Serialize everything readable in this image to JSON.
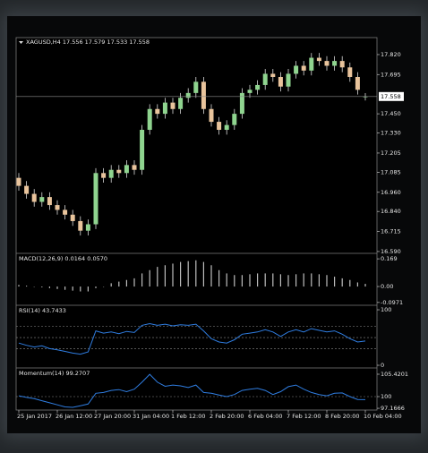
{
  "chart_data": [
    {
      "type": "candlestick",
      "title": "XAGUSD,H4  17.556 17.579 17.533 17.558",
      "categories": [
        "25 Jan 2017",
        null,
        null,
        null,
        null,
        "26 Jan 12:00",
        null,
        null,
        null,
        null,
        "27 Jan 20:00",
        null,
        null,
        null,
        null,
        "31 Jan 04:00",
        null,
        null,
        null,
        null,
        "1 Feb 12:00",
        null,
        null,
        null,
        null,
        "2 Feb 20:00",
        null,
        null,
        null,
        null,
        "6 Feb 04:00",
        null,
        null,
        null,
        null,
        "7 Feb 12:00",
        null,
        null,
        null,
        null,
        "8 Feb 20:00",
        null,
        null,
        null,
        null,
        "10 Feb 04:00"
      ],
      "open": [
        17.05,
        17.0,
        16.95,
        16.9,
        16.93,
        16.88,
        16.85,
        16.82,
        16.78,
        16.72,
        16.76,
        17.08,
        17.05,
        17.1,
        17.08,
        17.13,
        17.1,
        17.35,
        17.48,
        17.45,
        17.52,
        17.48,
        17.55,
        17.58,
        17.65,
        17.48,
        17.4,
        17.35,
        17.38,
        17.45,
        17.58,
        17.6,
        17.63,
        17.7,
        17.68,
        17.62,
        17.7,
        17.75,
        17.72,
        17.8,
        17.78,
        17.75,
        17.78,
        17.74,
        17.68,
        17.556
      ],
      "high": [
        17.08,
        17.03,
        16.98,
        16.96,
        16.96,
        16.91,
        16.88,
        16.85,
        16.81,
        16.79,
        17.11,
        17.11,
        17.13,
        17.13,
        17.16,
        17.16,
        17.38,
        17.51,
        17.51,
        17.55,
        17.55,
        17.58,
        17.61,
        17.68,
        17.68,
        17.51,
        17.43,
        17.41,
        17.48,
        17.61,
        17.63,
        17.66,
        17.73,
        17.73,
        17.71,
        17.73,
        17.78,
        17.78,
        17.83,
        17.83,
        17.81,
        17.81,
        17.81,
        17.77,
        17.71,
        17.579
      ],
      "low": [
        16.97,
        16.92,
        16.87,
        16.87,
        16.85,
        16.82,
        16.79,
        16.75,
        16.69,
        16.69,
        16.73,
        17.02,
        17.02,
        17.05,
        17.05,
        17.07,
        17.07,
        17.32,
        17.42,
        17.42,
        17.45,
        17.45,
        17.52,
        17.55,
        17.45,
        17.37,
        17.32,
        17.32,
        17.35,
        17.42,
        17.55,
        17.57,
        17.6,
        17.65,
        17.59,
        17.59,
        17.67,
        17.69,
        17.69,
        17.75,
        17.72,
        17.72,
        17.71,
        17.65,
        17.57,
        17.533
      ],
      "close": [
        17.0,
        16.95,
        16.9,
        16.93,
        16.88,
        16.85,
        16.82,
        16.78,
        16.72,
        16.76,
        17.08,
        17.05,
        17.1,
        17.08,
        17.13,
        17.1,
        17.35,
        17.48,
        17.45,
        17.52,
        17.48,
        17.55,
        17.58,
        17.65,
        17.48,
        17.4,
        17.35,
        17.38,
        17.45,
        17.58,
        17.6,
        17.63,
        17.7,
        17.68,
        17.62,
        17.7,
        17.75,
        17.72,
        17.8,
        17.78,
        17.75,
        17.78,
        17.74,
        17.68,
        17.6,
        17.558
      ],
      "up_color": "#8fd48f",
      "down_color": "#e9c49c",
      "wick_color": "#d8d8d8",
      "current_price": 17.558,
      "ylim": [
        16.584,
        17.926
      ],
      "yticks": [
        {
          "value": 16.59,
          "label": "16.590"
        },
        16.715,
        {
          "value": 16.84,
          "label": "16.840"
        },
        {
          "value": 16.96,
          "label": "16.960"
        },
        17.085,
        17.205,
        {
          "value": 17.33,
          "label": "17.330"
        },
        {
          "value": 17.45,
          "label": "17.450"
        },
        17.695,
        {
          "value": 17.82,
          "label": "17.820"
        }
      ]
    },
    {
      "type": "bar",
      "title": "MACD(12,26,9) 0.0164 0.0570",
      "color": "#bdbdbd",
      "values": [
        0.01,
        0.005,
        0.0,
        -0.005,
        -0.01,
        -0.015,
        -0.02,
        -0.025,
        -0.03,
        -0.03,
        -0.01,
        0.0,
        0.02,
        0.03,
        0.04,
        0.05,
        0.08,
        0.1,
        0.12,
        0.13,
        0.14,
        0.15,
        0.155,
        0.16,
        0.15,
        0.13,
        0.1,
        0.08,
        0.07,
        0.07,
        0.075,
        0.08,
        0.08,
        0.08,
        0.075,
        0.07,
        0.075,
        0.08,
        0.08,
        0.075,
        0.07,
        0.06,
        0.05,
        0.04,
        0.025,
        0.0164
      ],
      "ylim": [
        -0.109,
        0.197
      ],
      "yticks": [
        -0.0971,
        {
          "value": 0,
          "label": "0.00"
        },
        0.169
      ]
    },
    {
      "type": "line",
      "title": "RSI(14) 43.7433",
      "color": "#2f7de1",
      "values": [
        40,
        36,
        33,
        35,
        30,
        28,
        25,
        22,
        20,
        24,
        62,
        58,
        60,
        57,
        61,
        59,
        72,
        75,
        72,
        74,
        71,
        73,
        72,
        74,
        62,
        48,
        42,
        40,
        46,
        56,
        58,
        60,
        64,
        60,
        52,
        60,
        64,
        60,
        66,
        63,
        60,
        62,
        56,
        48,
        42,
        43.7433
      ],
      "levels": [
        30,
        50,
        70
      ],
      "ylim": [
        -3.2,
        106.5
      ],
      "yticks": [
        0,
        100
      ]
    },
    {
      "type": "line",
      "title": "Momentum(14) 99.2707",
      "color": "#2f7de1",
      "values": [
        100.2,
        99.8,
        99.5,
        99.0,
        98.5,
        98.0,
        97.5,
        97.4,
        97.8,
        98.2,
        100.8,
        101.0,
        101.5,
        101.7,
        101.2,
        101.8,
        103.5,
        105.4,
        103.5,
        102.5,
        102.8,
        102.6,
        102.2,
        102.8,
        101.0,
        100.8,
        100.4,
        100.0,
        100.5,
        101.5,
        101.8,
        102.0,
        101.5,
        100.5,
        101.2,
        102.4,
        102.8,
        101.8,
        101.0,
        100.5,
        100.2,
        100.8,
        100.9,
        100.0,
        99.3,
        99.2707
      ],
      "levels": [
        100
      ],
      "ylim": [
        96.75,
        106.72
      ],
      "yticks": [
        97.1666,
        100,
        105.4201
      ]
    }
  ]
}
